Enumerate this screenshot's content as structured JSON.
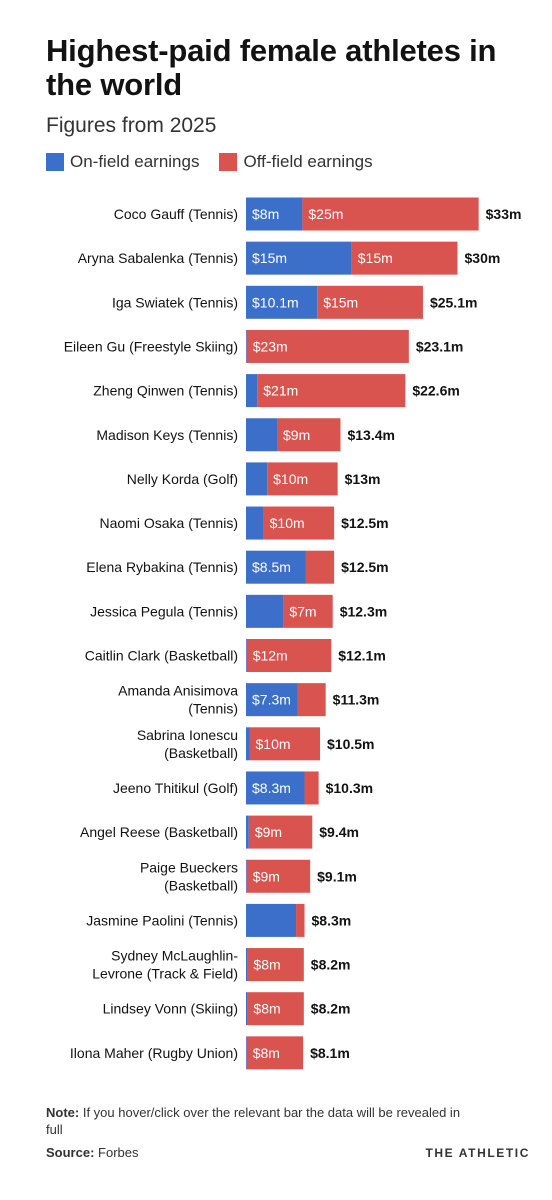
{
  "title": "Highest-paid female athletes in the world",
  "subtitle": "Figures from 2025",
  "legend": {
    "on_field": "On-field earnings",
    "off_field": "Off-field earnings"
  },
  "colors": {
    "on_field": "#3b6fca",
    "off_field": "#d9534f",
    "text": "#121212"
  },
  "footer": {
    "note_label": "Note:",
    "note_text": "If you hover/click over the relevant bar the data will be revealed in full",
    "source_label": "Source:",
    "source_text": "Forbes"
  },
  "brand": "THE ATHLETIC",
  "chart_data": {
    "type": "bar",
    "orientation": "horizontal",
    "stacked": true,
    "title": "Highest-paid female athletes in the world",
    "subtitle": "Figures from 2025",
    "xlim": [
      0,
      33
    ],
    "legend_position": "top-left",
    "grid": false,
    "series": [
      {
        "name": "On-field earnings",
        "color": "#3b6fca"
      },
      {
        "name": "Off-field earnings",
        "color": "#d9534f"
      }
    ],
    "rows": [
      {
        "label": [
          "Coco Gauff (Tennis)"
        ],
        "on_field": 8,
        "off_field": 25,
        "on_label": "$8m",
        "off_label": "$25m",
        "total_label": "$33m"
      },
      {
        "label": [
          "Aryna Sabalenka (Tennis)"
        ],
        "on_field": 15,
        "off_field": 15,
        "on_label": "$15m",
        "off_label": "$15m",
        "total_label": "$30m"
      },
      {
        "label": [
          "Iga Swiatek (Tennis)"
        ],
        "on_field": 10.1,
        "off_field": 15,
        "on_label": "$10.1m",
        "off_label": "$15m",
        "total_label": "$25.1m"
      },
      {
        "label": [
          "Eileen Gu (Freestyle Skiing)"
        ],
        "on_field": 0.1,
        "off_field": 23,
        "on_label": "",
        "off_label": "$23m",
        "total_label": "$23.1m"
      },
      {
        "label": [
          "Zheng Qinwen (Tennis)"
        ],
        "on_field": 1.6,
        "off_field": 21,
        "on_label": "",
        "off_label": "$21m",
        "total_label": "$22.6m"
      },
      {
        "label": [
          "Madison Keys (Tennis)"
        ],
        "on_field": 4.4,
        "off_field": 9,
        "on_label": "",
        "off_label": "$9m",
        "total_label": "$13.4m"
      },
      {
        "label": [
          "Nelly Korda (Golf)"
        ],
        "on_field": 3,
        "off_field": 10,
        "on_label": "",
        "off_label": "$10m",
        "total_label": "$13m"
      },
      {
        "label": [
          "Naomi Osaka (Tennis)"
        ],
        "on_field": 2.5,
        "off_field": 10,
        "on_label": "",
        "off_label": "$10m",
        "total_label": "$12.5m"
      },
      {
        "label": [
          "Elena Rybakina (Tennis)"
        ],
        "on_field": 8.5,
        "off_field": 4,
        "on_label": "$8.5m",
        "off_label": "",
        "total_label": "$12.5m"
      },
      {
        "label": [
          "Jessica Pegula (Tennis)"
        ],
        "on_field": 5.3,
        "off_field": 7,
        "on_label": "",
        "off_label": "$7m",
        "total_label": "$12.3m"
      },
      {
        "label": [
          "Caitlin Clark (Basketball)"
        ],
        "on_field": 0.1,
        "off_field": 12,
        "on_label": "",
        "off_label": "$12m",
        "total_label": "$12.1m"
      },
      {
        "label": [
          "Amanda Anisimova",
          "(Tennis)"
        ],
        "on_field": 7.3,
        "off_field": 4,
        "on_label": "$7.3m",
        "off_label": "",
        "total_label": "$11.3m"
      },
      {
        "label": [
          "Sabrina Ionescu",
          "(Basketball)"
        ],
        "on_field": 0.5,
        "off_field": 10,
        "on_label": "",
        "off_label": "$10m",
        "total_label": "$10.5m"
      },
      {
        "label": [
          "Jeeno Thitikul (Golf)"
        ],
        "on_field": 8.3,
        "off_field": 2,
        "on_label": "$8.3m",
        "off_label": "",
        "total_label": "$10.3m"
      },
      {
        "label": [
          "Angel Reese (Basketball)"
        ],
        "on_field": 0.4,
        "off_field": 9,
        "on_label": "",
        "off_label": "$9m",
        "total_label": "$9.4m"
      },
      {
        "label": [
          "Paige Bueckers",
          "(Basketball)"
        ],
        "on_field": 0.1,
        "off_field": 9,
        "on_label": "",
        "off_label": "$9m",
        "total_label": "$9.1m"
      },
      {
        "label": [
          "Jasmine Paolini (Tennis)"
        ],
        "on_field": 7.1,
        "off_field": 1.2,
        "on_label": "",
        "off_label": "",
        "total_label": "$8.3m"
      },
      {
        "label": [
          "Sydney McLaughlin-",
          "Levrone (Track & Field)"
        ],
        "on_field": 0.2,
        "off_field": 8,
        "on_label": "",
        "off_label": "$8m",
        "total_label": "$8.2m"
      },
      {
        "label": [
          "Lindsey Vonn (Skiing)"
        ],
        "on_field": 0.2,
        "off_field": 8,
        "on_label": "",
        "off_label": "$8m",
        "total_label": "$8.2m"
      },
      {
        "label": [
          "Ilona Maher (Rugby Union)"
        ],
        "on_field": 0.1,
        "off_field": 8,
        "on_label": "",
        "off_label": "$8m",
        "total_label": "$8.1m"
      }
    ]
  }
}
